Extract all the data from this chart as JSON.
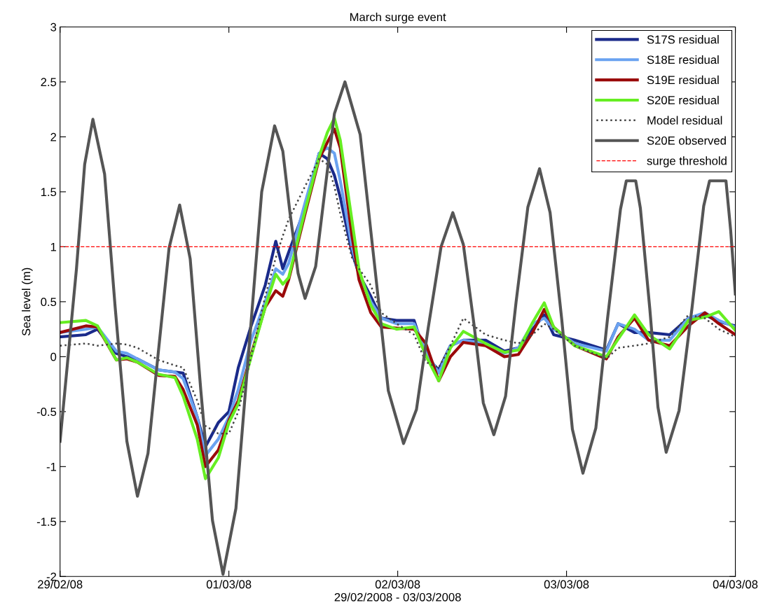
{
  "chart_data": {
    "type": "line",
    "title": "March surge event",
    "xlabel": "29/02/2008 - 03/03/2008",
    "ylabel": "Sea level (m)",
    "x": [
      "2008-02-29T00:00",
      "2008-02-29T03:40",
      "2008-02-29T05:20",
      "2008-02-29T08:00",
      "2008-02-29T09:30",
      "2008-02-29T11:00",
      "2008-02-29T14:00",
      "2008-02-29T16:20",
      "2008-02-29T17:30",
      "2008-02-29T19:30",
      "2008-02-29T20:40",
      "2008-02-29T22:30",
      "2008-03-01T00:00",
      "2008-03-01T01:20",
      "2008-03-01T03:10",
      "2008-03-01T05:10",
      "2008-03-01T06:40",
      "2008-03-01T07:40",
      "2008-03-01T08:30",
      "2008-03-01T10:50",
      "2008-03-01T12:50",
      "2008-03-01T14:00",
      "2008-03-01T15:00",
      "2008-03-01T15:50",
      "2008-03-01T17:30",
      "2008-03-01T18:30",
      "2008-03-01T20:10",
      "2008-03-01T21:40",
      "2008-03-01T23:50",
      "2008-03-02T02:20",
      "2008-03-02T04:00",
      "2008-03-02T05:50",
      "2008-03-02T07:30",
      "2008-03-02T09:20",
      "2008-03-02T12:30",
      "2008-03-02T15:10",
      "2008-03-02T17:10",
      "2008-03-02T19:10",
      "2008-03-02T20:50",
      "2008-03-02T22:10",
      "2008-03-03T01:10",
      "2008-03-03T05:40",
      "2008-03-03T07:20",
      "2008-03-03T09:40",
      "2008-03-03T11:40",
      "2008-03-03T14:40",
      "2008-03-03T17:20",
      "2008-03-03T19:40",
      "2008-03-03T21:40",
      "2008-03-04T00:00"
    ],
    "series": [
      {
        "name": "S17S residual",
        "color": "#1a2a8a",
        "values": [
          0.18,
          0.2,
          0.25,
          0.03,
          0.0,
          -0.02,
          -0.12,
          -0.14,
          -0.15,
          -0.55,
          -0.82,
          -0.6,
          -0.5,
          -0.1,
          0.28,
          0.65,
          1.05,
          0.8,
          0.95,
          1.35,
          1.85,
          1.8,
          1.65,
          1.45,
          0.95,
          0.75,
          0.55,
          0.35,
          0.33,
          0.33,
          0.0,
          -0.12,
          0.1,
          0.15,
          0.15,
          0.05,
          0.08,
          0.25,
          0.38,
          0.2,
          0.15,
          0.06,
          0.3,
          0.22,
          0.22,
          0.2,
          0.35,
          0.38,
          0.32,
          0.28
        ]
      },
      {
        "name": "S18E residual",
        "color": "#6aa2f0",
        "values": [
          0.22,
          0.25,
          0.27,
          0.05,
          0.03,
          -0.02,
          -0.12,
          -0.14,
          -0.2,
          -0.55,
          -0.9,
          -0.75,
          -0.55,
          -0.3,
          0.15,
          0.5,
          0.8,
          0.75,
          0.85,
          1.4,
          1.85,
          1.9,
          1.85,
          1.6,
          1.0,
          0.75,
          0.5,
          0.35,
          0.3,
          0.3,
          0.05,
          -0.15,
          0.1,
          0.15,
          0.12,
          0.03,
          0.08,
          0.3,
          0.35,
          0.25,
          0.12,
          0.05,
          0.3,
          0.25,
          0.15,
          0.15,
          0.35,
          0.4,
          0.33,
          0.27
        ]
      },
      {
        "name": "S19E residual",
        "color": "#9a0a0a",
        "values": [
          0.22,
          0.28,
          0.27,
          -0.03,
          -0.02,
          -0.05,
          -0.17,
          -0.18,
          -0.3,
          -0.62,
          -1.0,
          -0.85,
          -0.58,
          -0.4,
          0.02,
          0.45,
          0.6,
          0.55,
          0.7,
          1.3,
          1.8,
          1.95,
          2.07,
          1.9,
          1.1,
          0.7,
          0.4,
          0.27,
          0.26,
          0.25,
          0.12,
          -0.22,
          0.0,
          0.13,
          0.1,
          0.0,
          0.02,
          0.22,
          0.43,
          0.27,
          0.1,
          -0.02,
          0.18,
          0.35,
          0.15,
          0.1,
          0.28,
          0.4,
          0.3,
          0.2
        ]
      },
      {
        "name": "S20E residual",
        "color": "#66ee22",
        "values": [
          0.31,
          0.33,
          0.28,
          -0.03,
          -0.01,
          -0.05,
          -0.16,
          -0.19,
          -0.36,
          -0.75,
          -1.11,
          -0.92,
          -0.6,
          -0.43,
          0.0,
          0.45,
          0.75,
          0.66,
          0.72,
          1.33,
          1.82,
          2.04,
          2.17,
          1.97,
          1.24,
          0.79,
          0.47,
          0.3,
          0.25,
          0.27,
          0.01,
          -0.22,
          0.08,
          0.23,
          0.12,
          0.04,
          0.06,
          0.31,
          0.49,
          0.27,
          0.1,
          0.0,
          0.16,
          0.38,
          0.2,
          0.07,
          0.33,
          0.36,
          0.41,
          0.24
        ]
      },
      {
        "name": "Model residual",
        "color": "#444444",
        "line_style": "dotted",
        "values": [
          0.1,
          0.12,
          0.1,
          0.12,
          0.11,
          0.08,
          -0.03,
          -0.08,
          -0.1,
          -0.4,
          -0.63,
          -0.7,
          -0.7,
          -0.5,
          0.0,
          0.55,
          0.9,
          1.1,
          1.25,
          1.55,
          1.8,
          1.75,
          1.55,
          1.3,
          0.9,
          0.8,
          0.65,
          0.4,
          0.3,
          0.2,
          -0.05,
          -0.1,
          0.1,
          0.35,
          0.2,
          0.15,
          0.12,
          0.2,
          0.3,
          0.25,
          0.1,
          -0.02,
          0.08,
          0.1,
          0.12,
          0.18,
          0.38,
          0.35,
          0.25,
          0.18
        ]
      },
      {
        "name": "S20E observed",
        "color": "#555555",
        "x": [
          "2008-02-29T00:00",
          "2008-02-29T02:20",
          "2008-02-29T03:30",
          "2008-02-29T04:40",
          "2008-02-29T06:20",
          "2008-02-29T07:50",
          "2008-02-29T09:30",
          "2008-02-29T11:00",
          "2008-02-29T12:30",
          "2008-02-29T14:00",
          "2008-02-29T15:30",
          "2008-02-29T17:00",
          "2008-02-29T18:30",
          "2008-02-29T20:00",
          "2008-02-29T21:40",
          "2008-02-29T23:10",
          "2008-03-01T01:00",
          "2008-03-01T02:50",
          "2008-03-01T04:40",
          "2008-03-01T06:30",
          "2008-03-01T07:40",
          "2008-03-01T08:40",
          "2008-03-01T09:50",
          "2008-03-01T10:50",
          "2008-03-01T12:20",
          "2008-03-01T13:40",
          "2008-03-01T15:00",
          "2008-03-01T16:30",
          "2008-03-01T18:40",
          "2008-03-01T20:40",
          "2008-03-01T22:40",
          "2008-03-02T00:50",
          "2008-03-02T02:40",
          "2008-03-02T04:20",
          "2008-03-02T06:10",
          "2008-03-02T07:50",
          "2008-03-02T09:20",
          "2008-03-02T10:50",
          "2008-03-02T12:10",
          "2008-03-02T13:40",
          "2008-03-02T15:20",
          "2008-03-02T16:50",
          "2008-03-02T18:30",
          "2008-03-02T20:10",
          "2008-03-02T21:40",
          "2008-03-02T23:20",
          "2008-03-03T00:50",
          "2008-03-03T02:20",
          "2008-03-03T04:10",
          "2008-03-03T05:50",
          "2008-03-03T07:40",
          "2008-03-03T08:30",
          "2008-03-03T09:50",
          "2008-03-03T10:30",
          "2008-03-03T11:50",
          "2008-03-03T13:00",
          "2008-03-03T14:10",
          "2008-03-03T16:00",
          "2008-03-03T17:50",
          "2008-03-03T19:30",
          "2008-03-03T20:20",
          "2008-03-03T22:40",
          "2008-03-03T23:20",
          "2008-03-04T00:00"
        ],
        "values": [
          -0.77,
          0.8,
          1.75,
          2.16,
          1.66,
          0.45,
          -0.77,
          -1.27,
          -0.88,
          0.06,
          0.99,
          1.38,
          0.89,
          -0.3,
          -1.49,
          -1.98,
          -1.38,
          0.06,
          1.5,
          2.1,
          1.87,
          1.32,
          0.76,
          0.53,
          0.82,
          1.52,
          2.21,
          2.5,
          2.02,
          0.86,
          -0.31,
          -0.79,
          -0.48,
          0.26,
          1.0,
          1.31,
          1.02,
          0.3,
          -0.42,
          -0.71,
          -0.36,
          0.5,
          1.36,
          1.71,
          1.31,
          0.33,
          -0.66,
          -1.06,
          -0.65,
          0.35,
          1.34,
          1.6,
          1.6,
          1.35,
          0.44,
          -0.46,
          -0.87,
          -0.49,
          0.44,
          1.37,
          1.6,
          1.6,
          1.15,
          0.57
        ]
      }
    ],
    "ref_lines": [
      {
        "axis": "y",
        "value": 1,
        "label": "surge threshold",
        "color": "#ff0000",
        "line_style": "dashed"
      }
    ],
    "xlim": [
      "2008-02-29",
      "2008-03-04"
    ],
    "xticks": [
      {
        "value": "2008-02-29",
        "label": "29/02/08"
      },
      {
        "value": "2008-03-01",
        "label": "01/03/08"
      },
      {
        "value": "2008-03-02",
        "label": "02/03/08"
      },
      {
        "value": "2008-03-03",
        "label": "03/03/08"
      },
      {
        "value": "2008-03-04",
        "label": "04/03/08"
      }
    ],
    "ylim": [
      -2,
      3
    ],
    "yticks": [
      -2,
      -1.5,
      -1,
      -0.5,
      0,
      0.5,
      1,
      1.5,
      2,
      2.5,
      3
    ],
    "line_style": "solid",
    "legend": "top right"
  }
}
